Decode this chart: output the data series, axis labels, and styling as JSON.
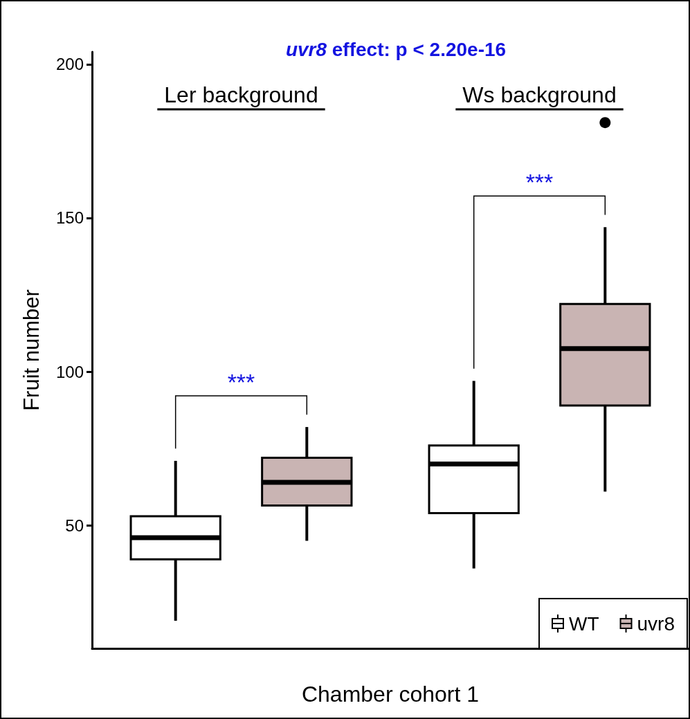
{
  "chart_data": {
    "type": "box",
    "title": "uvr8 effect: p < 2.20e-16",
    "xlabel": "Chamber cohort 1",
    "ylabel": "Fruit number",
    "categories": [
      "Ler background",
      "Ws background"
    ],
    "series": [
      {
        "name": "WT",
        "color": "#ffffff",
        "boxes": [
          {
            "low": 19,
            "q1": 39,
            "median": 46,
            "q3": 53,
            "high": 71
          },
          {
            "low": 36,
            "q1": 54,
            "median": 70,
            "q3": 76,
            "high": 97
          }
        ]
      },
      {
        "name": "uvr8",
        "color": "#c9b4b3",
        "boxes": [
          {
            "low": 45,
            "q1": 56.5,
            "median": 64,
            "q3": 72,
            "high": 82
          },
          {
            "low": 61,
            "q1": 89,
            "median": 107.5,
            "q3": 122,
            "high": 147,
            "outliers": [
              181
            ]
          }
        ]
      }
    ],
    "ylim": [
      10,
      204
    ],
    "yticks": [
      50,
      100,
      150,
      200
    ],
    "grid": false,
    "legend": "bottom right",
    "annotations": [
      "***",
      "***"
    ]
  }
}
